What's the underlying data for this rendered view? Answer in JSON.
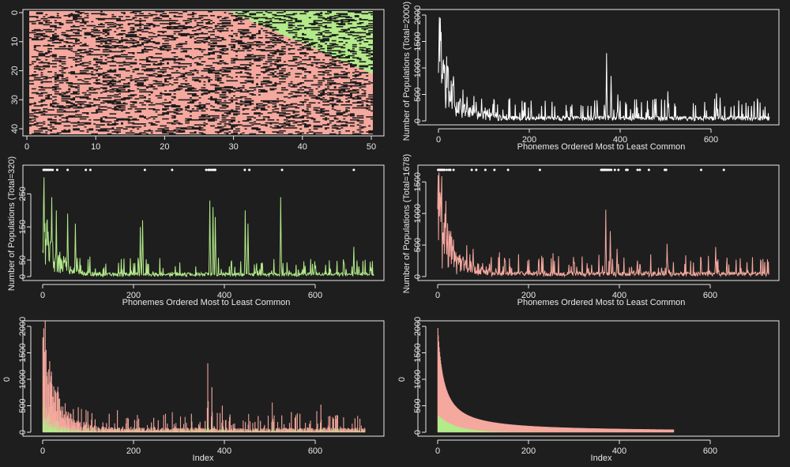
{
  "colors": {
    "background": "#1e1e1e",
    "axis": "#e8e8e8",
    "red": "#f5a89e",
    "green": "#b3ea8a",
    "white": "#ffffff",
    "black_cells": "#1c1c1c"
  },
  "chart_data": [
    {
      "id": "map",
      "type": "heatmap",
      "description_grid": "41 rows x 50 cols of populations colored by phoneme group",
      "xlim": [
        0,
        50
      ],
      "ylim": [
        41,
        0
      ],
      "xticks": [
        "0",
        "10",
        "20",
        "30",
        "40",
        "50"
      ],
      "yticks": [
        "0",
        "10",
        "20",
        "30",
        "40"
      ],
      "xlabel": "",
      "ylabel": "",
      "boundary": {
        "x1": 29,
        "y1": 0,
        "x2": 50,
        "y2": 21
      }
    },
    {
      "id": "total",
      "type": "line",
      "color": "white",
      "xlabel": "Phonemes Ordered Most to Least Common",
      "ylabel": "Number of Populations (Total=2000)",
      "xlim": [
        0,
        730
      ],
      "ylim": [
        0,
        2000
      ],
      "xticks": [
        "0",
        "200",
        "400",
        "600"
      ],
      "yticks": [
        "0",
        "500",
        "1000",
        "1500",
        "2000"
      ],
      "n": 730,
      "peaks": [
        [
          2,
          1960
        ],
        [
          12,
          900
        ],
        [
          28,
          760
        ],
        [
          78,
          470
        ],
        [
          95,
          420
        ],
        [
          370,
          1280
        ],
        [
          380,
          850
        ],
        [
          395,
          500
        ],
        [
          505,
          560
        ],
        [
          612,
          520
        ],
        [
          620,
          440
        ]
      ]
    },
    {
      "id": "green",
      "type": "line",
      "color": "green",
      "xlabel": "Phonemes Ordered Most to Least Common",
      "ylabel": "Number of Populations (Total=320)",
      "xlim": [
        0,
        730
      ],
      "ylim": [
        0,
        320
      ],
      "xticks": [
        "0",
        "200",
        "400",
        "600"
      ],
      "yticks": [
        "0",
        "50",
        "150",
        "250"
      ],
      "n": 730,
      "peaks": [
        [
          3,
          300
        ],
        [
          20,
          240
        ],
        [
          30,
          200
        ],
        [
          55,
          190
        ],
        [
          72,
          160
        ],
        [
          215,
          150
        ],
        [
          220,
          170
        ],
        [
          368,
          230
        ],
        [
          375,
          210
        ],
        [
          380,
          180
        ],
        [
          446,
          200
        ],
        [
          452,
          160
        ],
        [
          524,
          240
        ],
        [
          685,
          90
        ]
      ],
      "markers": [
        2,
        5,
        8,
        11,
        14,
        18,
        22,
        32,
        55,
        95,
        105,
        225,
        285,
        360,
        365,
        368,
        372,
        376,
        378,
        380,
        445,
        455,
        527,
        685
      ]
    },
    {
      "id": "red",
      "type": "line",
      "color": "red",
      "xlabel": "Phonemes Ordered Most to Least Common",
      "ylabel": "Number of Populations (Total=1678)",
      "xlim": [
        0,
        730
      ],
      "ylim": [
        0,
        1678
      ],
      "xticks": [
        "0",
        "200",
        "400",
        "600"
      ],
      "yticks": [
        "0",
        "500",
        "1000",
        "1500"
      ],
      "n": 730,
      "peaks": [
        [
          3,
          1650
        ],
        [
          12,
          700
        ],
        [
          28,
          640
        ],
        [
          78,
          440
        ],
        [
          370,
          1060
        ],
        [
          380,
          720
        ],
        [
          395,
          440
        ],
        [
          505,
          520
        ],
        [
          612,
          470
        ]
      ],
      "markers": [
        1,
        3,
        5,
        7,
        9,
        12,
        15,
        20,
        25,
        28,
        35,
        75,
        85,
        105,
        125,
        155,
        225,
        360,
        362,
        364,
        366,
        368,
        370,
        372,
        375,
        378,
        382,
        390,
        398,
        415,
        418,
        440,
        445,
        465,
        500,
        503,
        580,
        630
      ]
    },
    {
      "id": "stacked_unsorted",
      "type": "bar",
      "stacked": true,
      "xlabel": "Index",
      "ylabel": "0",
      "xlim": [
        0,
        730
      ],
      "ylim": [
        0,
        2000
      ],
      "xticks": [
        "0",
        "200",
        "400",
        "600"
      ],
      "yticks": [
        "0",
        "500",
        "1000",
        "1500",
        "2000"
      ],
      "n": 710,
      "series": [
        {
          "name": "",
          "color": "green"
        },
        {
          "name": "",
          "color": "red"
        }
      ],
      "peaks": [
        [
          2,
          1960
        ],
        [
          12,
          900
        ],
        [
          28,
          760
        ],
        [
          78,
          470
        ],
        [
          95,
          420
        ],
        [
          363,
          1300
        ],
        [
          372,
          850
        ],
        [
          395,
          500
        ],
        [
          505,
          560
        ],
        [
          612,
          520
        ]
      ]
    },
    {
      "id": "stacked_sorted",
      "type": "bar",
      "stacked": true,
      "xlabel": "Index",
      "ylabel": "0",
      "xlim": [
        0,
        730
      ],
      "ylim": [
        0,
        2000
      ],
      "xticks": [
        "0",
        "200",
        "400",
        "600"
      ],
      "yticks": [
        "0",
        "500",
        "1000",
        "1500",
        "2000"
      ],
      "n": 520,
      "series": [
        {
          "name": "",
          "color": "green"
        },
        {
          "name": "",
          "color": "red"
        }
      ],
      "decay": {
        "start": 1960,
        "mid_index": 100,
        "mid_value": 270,
        "end_value": 5
      }
    }
  ]
}
